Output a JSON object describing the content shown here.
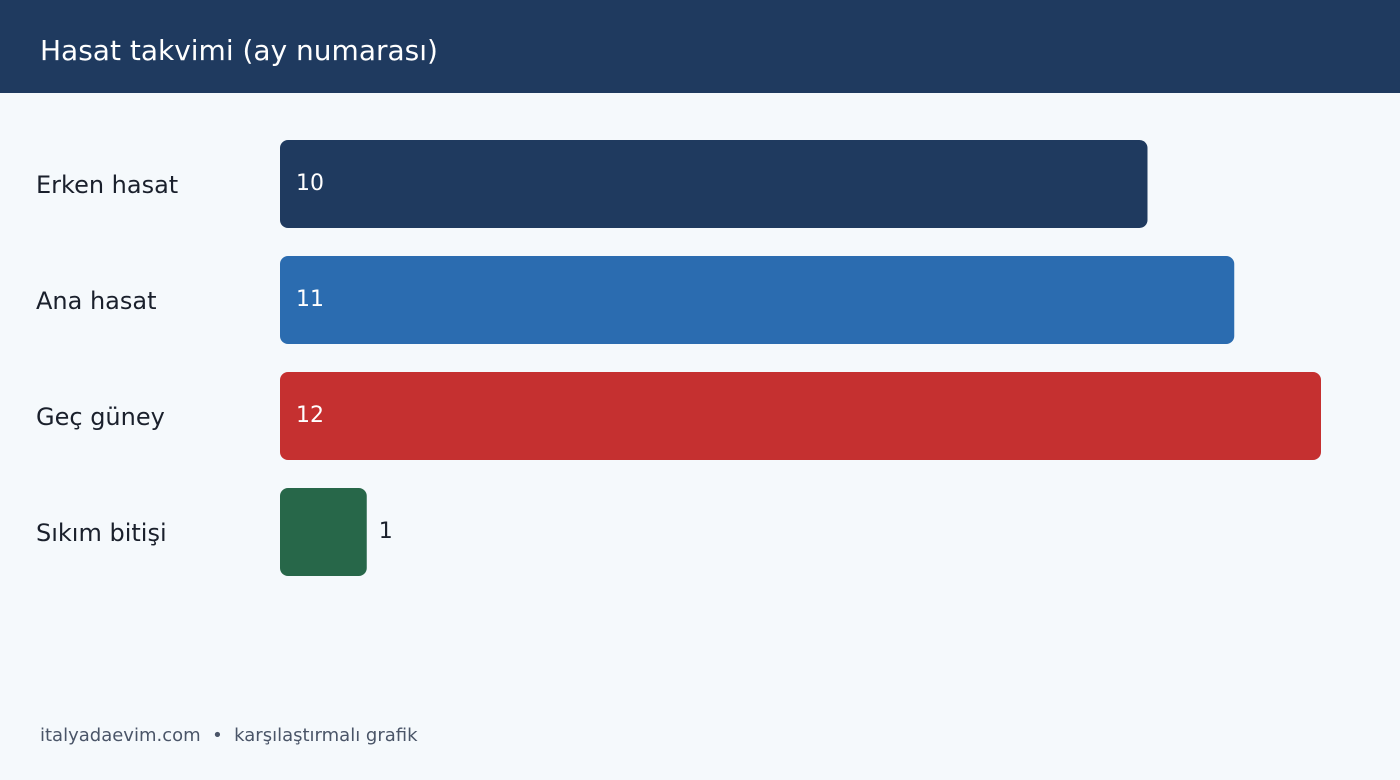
{
  "chart_data": {
    "type": "bar",
    "orientation": "horizontal",
    "title": "Hasat takvimi (ay numarası)",
    "categories": [
      "Erken hasat",
      "Ana hasat",
      "Geç güney",
      "Sıkım bitişi"
    ],
    "values": [
      10,
      11,
      12,
      1
    ],
    "colors": [
      "#1f3a5f",
      "#2b6cb0",
      "#c53030",
      "#276749"
    ],
    "footer": "italyadaevim.com  •  karşılaştırmalı grafik"
  }
}
